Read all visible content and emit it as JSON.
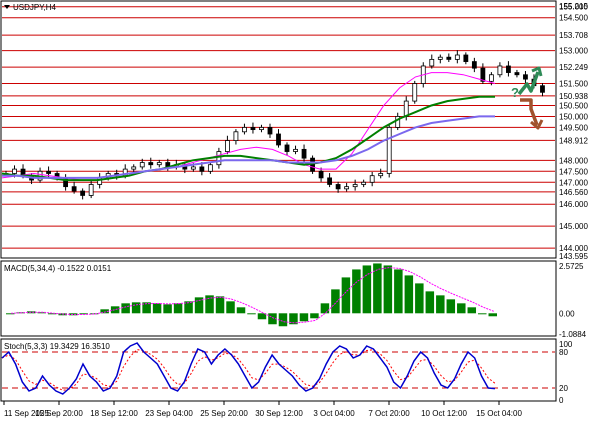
{
  "header": {
    "symbol_label": "USDJPY,H4"
  },
  "chart_data": [
    {
      "type": "candlestick",
      "title": "USDJPY,H4",
      "x": [
        "11 Sep 2025",
        "15 Sep 20:00",
        "18 Sep 12:00",
        "23 Sep 04:00",
        "25 Sep 20:00",
        "30 Sep 12:00",
        "3 Oct 04:00",
        "7 Oct 20:00",
        "10 Oct 12:00",
        "15 Oct 04:00"
      ],
      "y_axis_labels": [
        "155.215",
        "155.000",
        "154.500",
        "153.708",
        "153.000",
        "152.249",
        "151.500",
        "150.938",
        "150.500",
        "150.000",
        "149.500",
        "148.912",
        "148.000",
        "147.500",
        "147.000",
        "146.560",
        "146.000",
        "145.000",
        "144.000",
        "143.595"
      ],
      "ylim": [
        143.595,
        155.215
      ],
      "levels": [
        155.0,
        154.5,
        153.708,
        153.0,
        152.249,
        151.5,
        150.938,
        150.5,
        150.0,
        149.5,
        148.912,
        148.0,
        147.5,
        147.0,
        146.56,
        146.0,
        145.0,
        144.0
      ],
      "approx_close_path": [
        147.4,
        147.6,
        147.3,
        147.1,
        147.5,
        147.4,
        147.2,
        146.8,
        146.6,
        146.4,
        146.9,
        147.2,
        147.4,
        147.3,
        147.6,
        147.7,
        147.9,
        147.8,
        147.9,
        147.7,
        147.8,
        147.6,
        147.7,
        147.5,
        147.8,
        148.4,
        148.9,
        149.3,
        149.5,
        149.4,
        149.5,
        149.2,
        148.7,
        148.4,
        148.5,
        148.1,
        147.5,
        147.2,
        146.9,
        146.7,
        146.8,
        146.9,
        147.0,
        147.3,
        147.4,
        149.5,
        150.0,
        150.7,
        151.5,
        152.3,
        152.6,
        152.7,
        152.6,
        152.8,
        152.5,
        152.2,
        151.6,
        151.9,
        152.3,
        152.0,
        151.9,
        151.7,
        151.4,
        151.1
      ],
      "moving_averages": [
        {
          "color": "#ff00ff",
          "approx_path": [
            147.2,
            147.3,
            147.4,
            147.3,
            147.2,
            147.1,
            147.1,
            147.2,
            147.3,
            147.5,
            147.6,
            147.7,
            147.9,
            148.1,
            148.3,
            148.5,
            148.6,
            148.5,
            148.2,
            147.8,
            147.6,
            147.6,
            148.3,
            149.4,
            150.5,
            151.3,
            151.8,
            152.0,
            152.0,
            151.9,
            151.7,
            151.5
          ]
        },
        {
          "color": "#008000",
          "approx_path": [
            147.4,
            147.3,
            147.3,
            147.2,
            147.1,
            147.1,
            147.1,
            147.2,
            147.3,
            147.5,
            147.6,
            147.8,
            148.0,
            148.1,
            148.2,
            148.2,
            148.1,
            148.0,
            147.9,
            147.8,
            147.9,
            148.1,
            148.5,
            149.0,
            149.5,
            149.9,
            150.2,
            150.5,
            150.7,
            150.8,
            150.9,
            150.9
          ]
        },
        {
          "color": "#7b68ee",
          "approx_path": [
            147.3,
            147.3,
            147.2,
            147.2,
            147.2,
            147.2,
            147.2,
            147.3,
            147.4,
            147.5,
            147.6,
            147.7,
            147.8,
            147.9,
            148.0,
            148.0,
            148.0,
            148.0,
            147.9,
            147.9,
            147.9,
            148.0,
            148.2,
            148.5,
            148.9,
            149.2,
            149.5,
            149.7,
            149.8,
            149.9,
            150.0,
            150.0
          ]
        }
      ],
      "annotation": {
        "question_mark": "?",
        "up_arrow_color": "#2e8b57",
        "down_arrow_color": "#a0522d"
      }
    },
    {
      "type": "bar",
      "title": "MACD(5,34,4) -0.1522 0.0151",
      "y_axis_labels": [
        "2.5725",
        "0.00",
        "-1.0884"
      ],
      "ylim": [
        -1.0884,
        2.5725
      ],
      "signal_color": "#ff00ff",
      "bar_color": "#008000",
      "approx_values": [
        0.0,
        0.05,
        0.1,
        0.05,
        -0.05,
        -0.1,
        -0.1,
        -0.05,
        0.0,
        0.2,
        0.35,
        0.5,
        0.55,
        0.55,
        0.5,
        0.45,
        0.5,
        0.6,
        0.8,
        0.9,
        0.85,
        0.6,
        0.3,
        0.0,
        -0.3,
        -0.55,
        -0.65,
        -0.55,
        -0.4,
        -0.25,
        0.5,
        1.2,
        1.8,
        2.2,
        2.4,
        2.5,
        2.4,
        2.2,
        1.9,
        1.5,
        1.1,
        0.9,
        0.7,
        0.5,
        0.3,
        0.0,
        -0.15
      ]
    },
    {
      "type": "line",
      "title": "Stoch(5,3,3) 19.3429 16.3510",
      "y_axis_labels": [
        "100",
        "80",
        "20",
        "0"
      ],
      "ylim": [
        0,
        100
      ],
      "dashed_levels": [
        80,
        20
      ],
      "main_color": "#0000cd",
      "signal_color": "#ff0000",
      "approx_main": [
        70,
        80,
        60,
        30,
        15,
        20,
        40,
        25,
        15,
        10,
        20,
        35,
        60,
        40,
        30,
        15,
        20,
        40,
        80,
        90,
        95,
        80,
        70,
        60,
        40,
        20,
        15,
        30,
        60,
        85,
        80,
        60,
        75,
        85,
        75,
        60,
        40,
        20,
        30,
        55,
        75,
        60,
        50,
        40,
        25,
        15,
        20,
        35,
        60,
        80,
        90,
        85,
        70,
        75,
        90,
        85,
        70,
        55,
        30,
        20,
        40,
        65,
        80,
        70,
        45,
        25,
        20,
        35,
        60,
        80,
        70,
        40,
        20,
        19
      ]
    }
  ],
  "x_axis_labels": [
    "11 Sep 2025",
    "15 Sep 20:00",
    "18 Sep 12:00",
    "23 Sep 04:00",
    "25 Sep 20:00",
    "30 Sep 12:00",
    "3 Oct 04:00",
    "7 Oct 20:00",
    "10 Oct 12:00",
    "15 Oct 04:00"
  ]
}
